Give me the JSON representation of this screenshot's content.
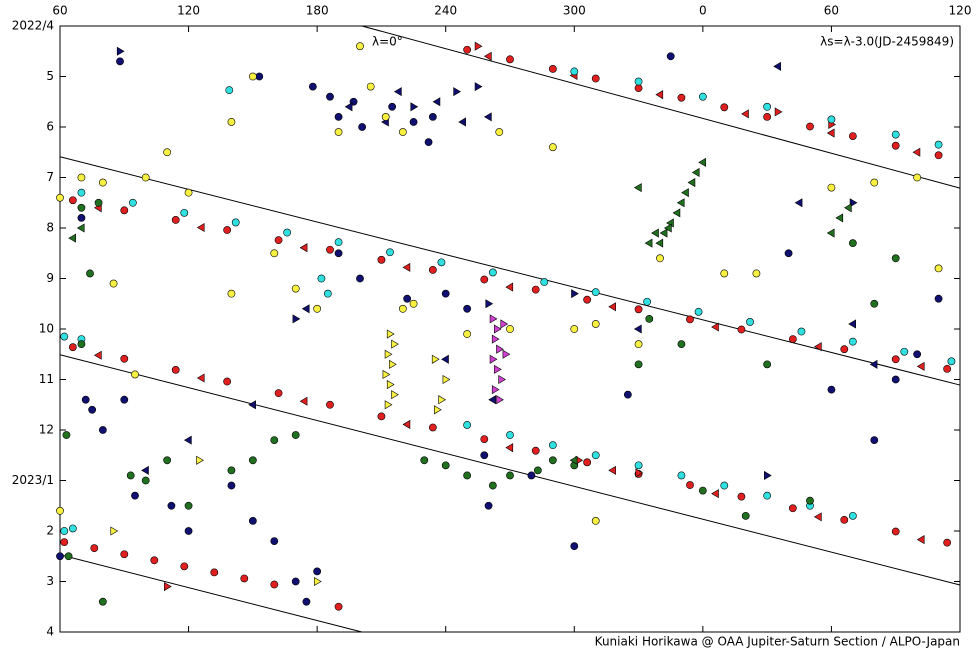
{
  "chart_data": {
    "type": "scatter",
    "annotation": "λ=0°",
    "note": "λs=λ-3.0(JD-2459849)",
    "credit": "Kuniaki Horikawa @ OAA Jupiter-Saturn Section / ALPO-Japan",
    "xlim": [
      60,
      480
    ],
    "xticks": [
      60,
      120,
      180,
      240,
      300,
      {
        "value": 360,
        "label": "0"
      },
      {
        "value": 420,
        "label": "60"
      },
      {
        "value": 480,
        "label": "120"
      }
    ],
    "ylim": [
      0,
      12
    ],
    "y_inverted": true,
    "yticks": [
      {
        "value": 0,
        "label": "2022/4"
      },
      {
        "value": 1,
        "label": "5"
      },
      {
        "value": 2,
        "label": "6"
      },
      {
        "value": 3,
        "label": "7"
      },
      {
        "value": 4,
        "label": "8"
      },
      {
        "value": 5,
        "label": "9"
      },
      {
        "value": 6,
        "label": "10"
      },
      {
        "value": 7,
        "label": "11"
      },
      {
        "value": 8,
        "label": "12"
      },
      {
        "value": 9,
        "label": "2023/1"
      },
      {
        "value": 10,
        "label": "2"
      },
      {
        "value": 11,
        "label": "3"
      },
      {
        "value": 12,
        "label": "4"
      }
    ],
    "reference_lines": [
      {
        "x": [
          200.9,
          480
        ],
        "y": [
          0,
          3.21
        ]
      },
      {
        "x": [
          60,
          480
        ],
        "y": [
          2.59,
          7.11
        ]
      },
      {
        "x": [
          60,
          480
        ],
        "y": [
          6.51,
          11.07
        ]
      },
      {
        "x": [
          60,
          200.9
        ],
        "y": [
          10.47,
          12
        ]
      }
    ],
    "series": [
      {
        "color": "#e02020",
        "marker": "circle",
        "x": [
          66,
          90,
          114,
          138,
          162,
          186,
          210,
          234,
          258,
          282,
          306,
          330,
          354,
          378,
          402,
          426,
          450,
          474,
          66,
          90,
          114,
          138,
          162,
          186,
          210,
          234,
          258,
          282,
          306,
          330,
          354,
          378,
          402,
          426,
          450,
          474,
          250,
          270,
          290,
          310,
          330,
          350,
          370,
          390,
          410,
          430,
          450,
          470,
          62,
          76,
          90,
          104,
          118,
          132,
          146,
          160,
          190
        ],
        "values": [
          3.45,
          3.65,
          3.84,
          4.04,
          4.24,
          4.43,
          4.63,
          4.83,
          5.02,
          5.22,
          5.42,
          5.61,
          5.81,
          6.01,
          6.2,
          6.4,
          6.6,
          6.79,
          6.36,
          6.59,
          6.81,
          7.04,
          7.27,
          7.5,
          7.73,
          7.95,
          8.18,
          8.41,
          8.64,
          8.87,
          9.09,
          9.32,
          9.55,
          9.78,
          10.01,
          10.23,
          0.47,
          0.66,
          0.85,
          1.04,
          1.23,
          1.42,
          1.61,
          1.8,
          1.99,
          2.18,
          2.37,
          2.56,
          10.22,
          10.34,
          10.46,
          10.58,
          10.7,
          10.82,
          10.94,
          11.06,
          11.5
        ]
      },
      {
        "color": "#e02020",
        "marker": "triangle-left",
        "x": [
          78,
          126,
          174,
          222,
          270,
          318,
          366,
          414,
          462,
          78,
          126,
          174,
          222,
          270,
          318,
          366,
          414,
          462,
          260,
          300,
          340,
          380,
          420,
          460
        ],
        "values": [
          3.6,
          3.99,
          4.39,
          4.78,
          5.17,
          5.56,
          5.96,
          6.35,
          6.74,
          6.52,
          6.97,
          7.43,
          7.89,
          8.35,
          8.8,
          9.26,
          9.72,
          10.17,
          0.6,
          0.98,
          1.36,
          1.74,
          2.12,
          2.5
        ]
      },
      {
        "color": "#e02020",
        "marker": "triangle-right",
        "x": [
          255,
          395,
          302,
          330,
          420,
          110
        ],
        "values": [
          0.4,
          1.7,
          8.6,
          8.85,
          1.95,
          11.1
        ]
      },
      {
        "color": "#30e0e0",
        "marker": "circle",
        "x": [
          70,
          94,
          118,
          142,
          166,
          190,
          214,
          238,
          262,
          286,
          310,
          334,
          358,
          382,
          406,
          430,
          454,
          476,
          250,
          270,
          290,
          310,
          330,
          350,
          370,
          390,
          410,
          430,
          62,
          70,
          300,
          330,
          360,
          390,
          420,
          450,
          470,
          62,
          66,
          182,
          185,
          139
        ],
        "values": [
          3.3,
          3.5,
          3.7,
          3.89,
          4.09,
          4.28,
          4.48,
          4.68,
          4.88,
          5.07,
          5.27,
          5.46,
          5.66,
          5.86,
          6.05,
          6.25,
          6.45,
          6.64,
          7.9,
          8.1,
          8.3,
          8.5,
          8.7,
          8.9,
          9.1,
          9.3,
          9.5,
          9.7,
          6.15,
          6.2,
          0.9,
          1.1,
          1.4,
          1.6,
          1.85,
          2.15,
          2.35,
          10.0,
          9.95,
          5.0,
          5.3,
          1.27
        ]
      },
      {
        "color": "#101070",
        "marker": "circle",
        "x": [
          178,
          186,
          190,
          197,
          201,
          215,
          225,
          232,
          234,
          88,
          153,
          140,
          150,
          160,
          180,
          75,
          80,
          95,
          112,
          120,
          260,
          280,
          300,
          325,
          420,
          440,
          460,
          450,
          190,
          200,
          222,
          240,
          250,
          258,
          60,
          70,
          72,
          90,
          400,
          470,
          170,
          175,
          345
        ],
        "values": [
          1.2,
          1.4,
          1.8,
          1.5,
          2.0,
          1.6,
          1.9,
          2.3,
          1.8,
          0.7,
          1.0,
          9.1,
          9.8,
          10.2,
          10.8,
          7.6,
          8.0,
          9.3,
          9.5,
          10.0,
          9.5,
          8.9,
          10.3,
          7.3,
          7.2,
          8.2,
          6.5,
          7.0,
          4.5,
          5.0,
          5.4,
          5.3,
          5.6,
          8.5,
          10.5,
          3.8,
          7.4,
          7.4,
          4.5,
          5.4,
          11.0,
          11.4,
          0.6
        ]
      },
      {
        "color": "#101070",
        "marker": "triangle-left",
        "x": [
          195,
          212,
          218,
          236,
          248,
          260,
          120,
          100,
          150,
          330,
          430,
          440,
          262,
          240,
          175,
          395,
          405
        ],
        "values": [
          1.6,
          1.9,
          1.3,
          1.5,
          1.9,
          1.8,
          8.2,
          8.8,
          7.5,
          6.0,
          5.9,
          6.7,
          7.4,
          6.6,
          5.6,
          0.8,
          3.5
        ]
      },
      {
        "color": "#101070",
        "marker": "triangle-right",
        "x": [
          225,
          245,
          88,
          255,
          260,
          170,
          430,
          300,
          390
        ],
        "values": [
          1.6,
          1.3,
          0.5,
          1.2,
          5.5,
          5.8,
          3.5,
          5.3,
          8.9
        ]
      },
      {
        "color": "#f8f040",
        "marker": "circle",
        "x": [
          150,
          140,
          200,
          205,
          212,
          190,
          220,
          265,
          290,
          70,
          80,
          100,
          120,
          85,
          95,
          160,
          170,
          180,
          220,
          225,
          250,
          270,
          300,
          310,
          330,
          340,
          370,
          385,
          420,
          440,
          460,
          470,
          110,
          140,
          60,
          310,
          60
        ],
        "values": [
          1.0,
          1.9,
          0.4,
          1.2,
          1.8,
          2.1,
          2.1,
          2.1,
          2.4,
          3.0,
          3.1,
          3.0,
          3.3,
          5.1,
          6.9,
          4.5,
          5.2,
          5.6,
          5.6,
          5.5,
          6.1,
          6.0,
          6.0,
          5.9,
          6.3,
          4.6,
          4.9,
          4.9,
          3.2,
          3.1,
          3.0,
          4.8,
          2.5,
          5.3,
          9.6,
          9.8,
          3.4
        ]
      },
      {
        "color": "#f8f040",
        "marker": "triangle-right",
        "x": [
          214,
          216,
          213,
          215,
          212,
          214,
          216,
          213,
          235,
          240,
          238,
          236,
          125,
          85,
          180
        ],
        "values": [
          6.1,
          6.3,
          6.5,
          6.7,
          6.9,
          7.1,
          7.3,
          7.5,
          6.6,
          7.0,
          7.4,
          7.6,
          8.6,
          10.0,
          11.0
        ]
      },
      {
        "color": "#207020",
        "marker": "circle",
        "x": [
          70,
          78,
          74,
          300,
          290,
          283,
          270,
          262,
          250,
          240,
          230,
          170,
          160,
          150,
          140,
          110,
          100,
          120,
          63,
          64,
          360,
          380,
          410,
          440,
          450,
          430,
          350,
          330,
          335,
          390,
          70,
          80,
          93
        ],
        "values": [
          3.6,
          3.5,
          4.9,
          8.7,
          8.6,
          8.8,
          8.9,
          9.1,
          8.9,
          8.7,
          8.6,
          8.1,
          8.2,
          8.6,
          8.8,
          8.6,
          9.0,
          9.5,
          8.1,
          10.5,
          9.2,
          9.7,
          9.4,
          5.5,
          4.6,
          4.3,
          6.3,
          6.7,
          5.8,
          6.7,
          6.3,
          11.4,
          8.9
        ]
      },
      {
        "color": "#207020",
        "marker": "triangle-left",
        "x": [
          340,
          342,
          345,
          348,
          350,
          352,
          355,
          357,
          360,
          338,
          335,
          344,
          420,
          424,
          428,
          70,
          66,
          300,
          330
        ],
        "values": [
          4.3,
          4.1,
          3.9,
          3.7,
          3.5,
          3.3,
          3.1,
          2.9,
          2.7,
          4.1,
          4.3,
          4.0,
          4.1,
          3.8,
          3.6,
          4.0,
          4.2,
          8.6,
          3.2
        ]
      },
      {
        "color": "#d040d0",
        "marker": "triangle-right",
        "x": [
          262,
          264,
          263,
          265,
          262,
          264,
          266,
          263,
          265,
          267,
          268
        ],
        "values": [
          5.8,
          6.0,
          6.2,
          6.4,
          6.6,
          6.8,
          7.0,
          7.2,
          7.4,
          5.9,
          6.5
        ]
      }
    ]
  }
}
